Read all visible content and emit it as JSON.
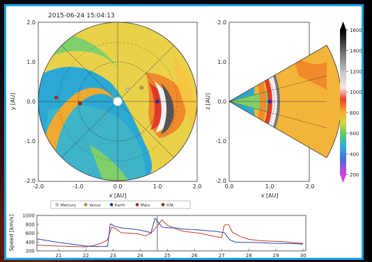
{
  "timestamp": "2015-06-24 15:04:13",
  "colors": {
    "frame_border": "#1aa3e6",
    "earth": "#1d2db5",
    "mars": "#b22a1f",
    "sta": "#8a2b1a",
    "mercury": "#c8c8c8",
    "venus": "#b59a38"
  },
  "ecliptic_panel": {
    "xlabel": "x [AU]",
    "ylabel": "y [AU]",
    "xticks": [
      "-2.0",
      "-1.0",
      "0.0",
      "1.0",
      "2.0"
    ],
    "yticks": [
      "2.0",
      "1.0",
      "0.0",
      "-1.0",
      "-2.0"
    ],
    "xlim": [
      -2.0,
      2.0
    ],
    "ylim": [
      -2.0,
      2.0
    ],
    "bodies": [
      {
        "name": "Mercury",
        "x": 0.25,
        "y": 0.3,
        "color": "#c8c8c8"
      },
      {
        "name": "Venus",
        "x": 0.6,
        "y": 0.35,
        "color": "#b59a38"
      },
      {
        "name": "Earth",
        "x": 1.0,
        "y": 0.0,
        "color": "#1d2db5"
      },
      {
        "name": "Mars",
        "x": -1.55,
        "y": 0.1,
        "color": "#b22a1f"
      },
      {
        "name": "STA",
        "x": -0.95,
        "y": -0.05,
        "color": "#8a2b1a"
      }
    ]
  },
  "meridional_panel": {
    "xlabel": "x [AU]",
    "ylabel": "z [AU]",
    "xticks": [
      "0.0",
      "1.0",
      "2.0"
    ],
    "yticks": [
      "2.0",
      "1.0",
      "0.0",
      "-1.0",
      "-2.0"
    ],
    "earth": {
      "x": 1.0,
      "z": 0.0
    }
  },
  "colorbar": {
    "ticks": [
      "1600",
      "1400",
      "1200",
      "1000",
      "800",
      "600",
      "400",
      "200"
    ],
    "range": [
      200,
      1600
    ]
  },
  "legend": {
    "items": [
      {
        "label": "Mercury",
        "color": "#c8c8c8"
      },
      {
        "label": "Venus",
        "color": "#b59a38"
      },
      {
        "label": "Earth",
        "color": "#1d2db5"
      },
      {
        "label": "Mars",
        "color": "#b22a1f"
      },
      {
        "label": "STA",
        "color": "#8a2b1a"
      }
    ]
  },
  "chart_data": {
    "type": "line",
    "ylabel": "Speed [km/s]",
    "yticks": [
      "1000",
      "800",
      "600",
      "400",
      "200"
    ],
    "xticks": [
      "21",
      "22",
      "23",
      "24",
      "25",
      "26",
      "27",
      "28",
      "29",
      "30"
    ],
    "xlim": [
      20.2,
      30.1
    ],
    "ylim": [
      200,
      1000
    ],
    "current_time": 24.63,
    "series": [
      {
        "color": "#c43a2a",
        "x": [
          20.2,
          20.6,
          21.0,
          21.5,
          22.0,
          22.3,
          22.6,
          22.8,
          22.95,
          23.1,
          23.3,
          23.6,
          23.9,
          24.2,
          24.4,
          24.6,
          24.8,
          25.0,
          25.3,
          25.6,
          25.9,
          26.2,
          26.5,
          26.8,
          27.0,
          27.1,
          27.25,
          27.4,
          27.7,
          28.0,
          28.4,
          28.8,
          29.2,
          29.6,
          30.0
        ],
        "y": [
          330,
          320,
          310,
          300,
          290,
          320,
          380,
          450,
          740,
          700,
          610,
          600,
          590,
          540,
          600,
          740,
          900,
          780,
          700,
          640,
          620,
          600,
          560,
          520,
          500,
          780,
          800,
          620,
          520,
          460,
          430,
          420,
          410,
          390,
          370
        ]
      },
      {
        "color": "#2f3fb0",
        "x": [
          20.2,
          20.6,
          21.0,
          21.5,
          22.0,
          22.3,
          22.6,
          22.8,
          22.9,
          23.05,
          23.3,
          23.6,
          23.9,
          24.2,
          24.4,
          24.55,
          24.65,
          24.8,
          25.0,
          25.3,
          25.6,
          26.0,
          26.4,
          26.8,
          27.1,
          27.3,
          27.5,
          27.8,
          28.2,
          28.6,
          29.0,
          29.4,
          29.8,
          30.0
        ],
        "y": [
          470,
          430,
          390,
          350,
          310,
          300,
          300,
          300,
          810,
          760,
          720,
          700,
          680,
          640,
          610,
          940,
          860,
          740,
          720,
          720,
          690,
          680,
          660,
          640,
          610,
          450,
          400,
          390,
          390,
          380,
          370,
          370,
          360,
          350
        ]
      }
    ]
  }
}
